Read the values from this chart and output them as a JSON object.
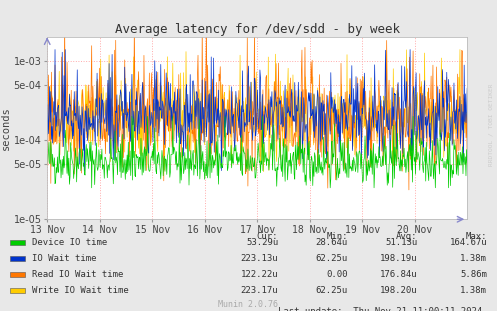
{
  "title": "Average latency for /dev/sdd - by week",
  "ylabel": "seconds",
  "watermark": "RRDTOOL / TOBI OETIKER",
  "munin_version": "Munin 2.0.76",
  "x_tick_labels": [
    "13 Nov",
    "14 Nov",
    "15 Nov",
    "16 Nov",
    "17 Nov",
    "18 Nov",
    "19 Nov",
    "20 Nov"
  ],
  "ylim_log_min": 1e-05,
  "ylim_log_max": 0.002,
  "bg_color": "#e8e8e8",
  "plot_bg_color": "#ffffff",
  "grid_color": "#ffaaaa",
  "legend": [
    {
      "label": "Device IO time",
      "color": "#00cc00"
    },
    {
      "label": "IO Wait time",
      "color": "#0033cc"
    },
    {
      "label": "Read IO Wait time",
      "color": "#ff7700"
    },
    {
      "label": "Write IO Wait time",
      "color": "#ffcc00"
    }
  ],
  "stats": {
    "headers": [
      "Cur:",
      "Min:",
      "Avg:",
      "Max:"
    ],
    "rows": [
      [
        "Device IO time",
        "53.29u",
        "28.64u",
        "51.13u",
        "164.67u"
      ],
      [
        "IO Wait time",
        "223.13u",
        "62.25u",
        "198.19u",
        "1.38m"
      ],
      [
        "Read IO Wait time",
        "122.22u",
        "0.00",
        "176.84u",
        "5.86m"
      ],
      [
        "Write IO Wait time",
        "223.17u",
        "62.25u",
        "198.20u",
        "1.38m"
      ]
    ]
  },
  "last_update": "Last update:  Thu Nov 21 11:00:11 2024",
  "n_points": 700,
  "seed": 42
}
